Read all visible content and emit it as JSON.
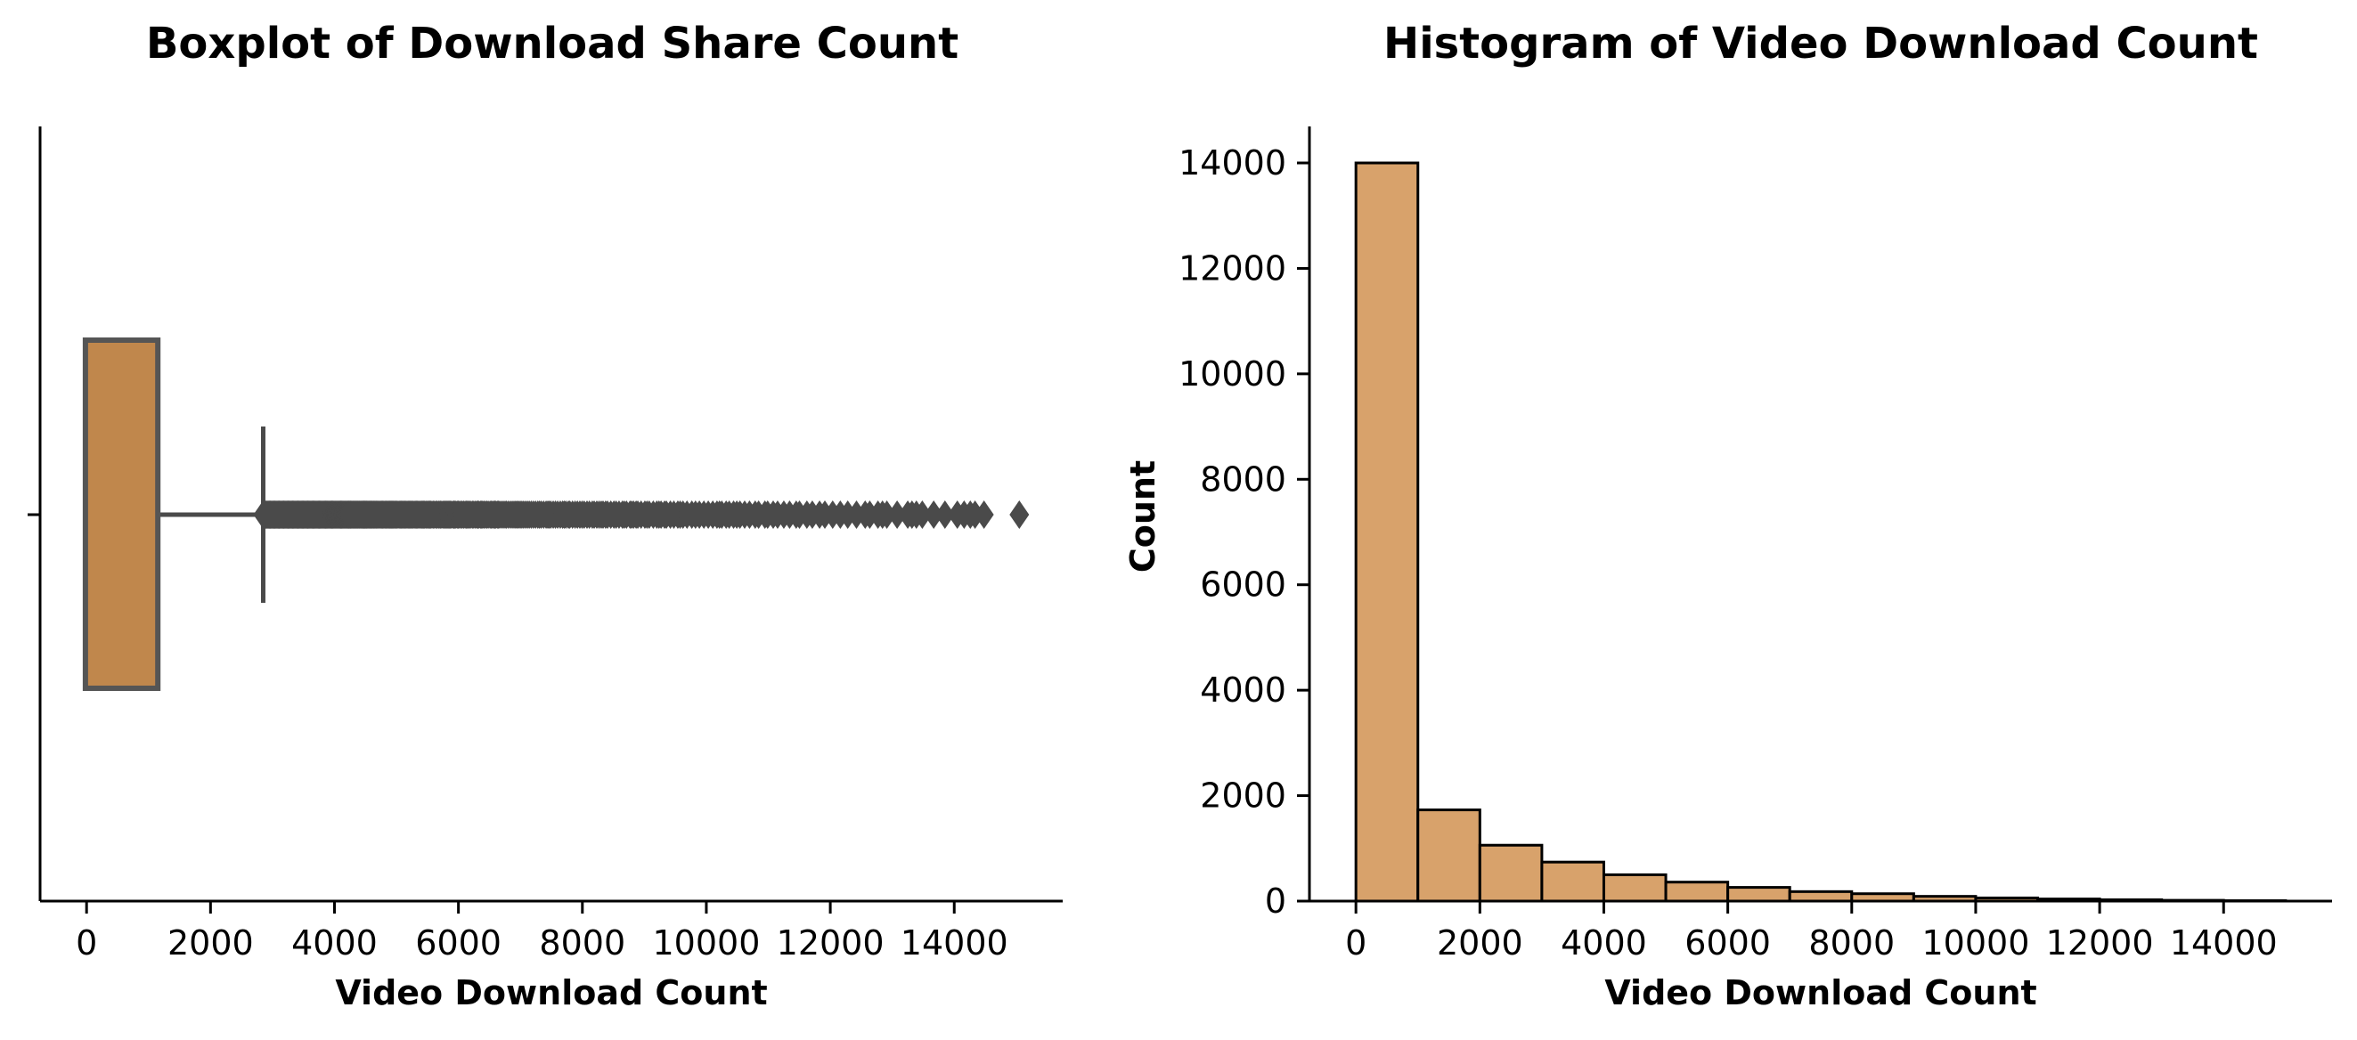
{
  "chart_data": [
    {
      "type": "box",
      "title": "Boxplot of Download Share Count",
      "xlabel": "Video Download Count",
      "ylabel": "",
      "xlim": [
        -750,
        15750
      ],
      "xticks": [
        "0",
        "2000",
        "4000",
        "6000",
        "8000",
        "10000",
        "12000",
        "14000"
      ],
      "box": {
        "min": 0,
        "q1": 10,
        "median": 50,
        "q3": 1150,
        "whisker_high": 2850,
        "outliers_range": [
          2850,
          14600
        ],
        "max_outlier": 15050
      },
      "colors": {
        "box_fill": "#c0874c",
        "line": "#4a4a4a"
      }
    },
    {
      "type": "histogram",
      "title": "Histogram of Video Download Count",
      "xlabel": "Video Download Count",
      "ylabel": "Count",
      "xlim": [
        -750,
        15750
      ],
      "ylim": [
        0,
        14700
      ],
      "xticks": [
        "0",
        "2000",
        "4000",
        "6000",
        "8000",
        "10000",
        "12000",
        "14000"
      ],
      "yticks": [
        "0",
        "2000",
        "4000",
        "6000",
        "8000",
        "10000",
        "12000",
        "14000"
      ],
      "bins": [
        0,
        1000,
        2000,
        3000,
        4000,
        5000,
        6000,
        7000,
        8000,
        9000,
        10000,
        11000,
        12000,
        13000,
        14000,
        15000
      ],
      "counts": [
        14000,
        1730,
        1060,
        740,
        500,
        360,
        260,
        180,
        140,
        90,
        60,
        40,
        25,
        15,
        8
      ],
      "colors": {
        "bar_fill": "#d8a26b",
        "bar_edge": "#000000"
      }
    }
  ]
}
